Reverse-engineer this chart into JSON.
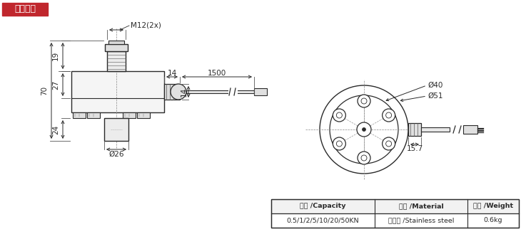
{
  "title_text": "外形尺寸",
  "title_bg": "#c0272d",
  "title_color": "#ffffff",
  "line_color": "#2a2a2a",
  "bg_color": "#ffffff",
  "table_headers": [
    "量程 /Capacity",
    "材料 /Material",
    "重量 /Weight"
  ],
  "table_row": [
    "0.5/1/2/5/10/20/50KN",
    "不锈钢 /Stainless steel",
    "0.6kg"
  ],
  "dims": {
    "M12_label": "M12(2x)",
    "d26": "Ø26",
    "d40": "Ø40",
    "d51": "Ø51",
    "d15_7": "15.7",
    "dim_19": "19",
    "dim_27": "27",
    "dim_70": "70",
    "dim_24": "24",
    "dim_14a": "14",
    "dim_14b": "14",
    "dim_1500": "1500"
  }
}
